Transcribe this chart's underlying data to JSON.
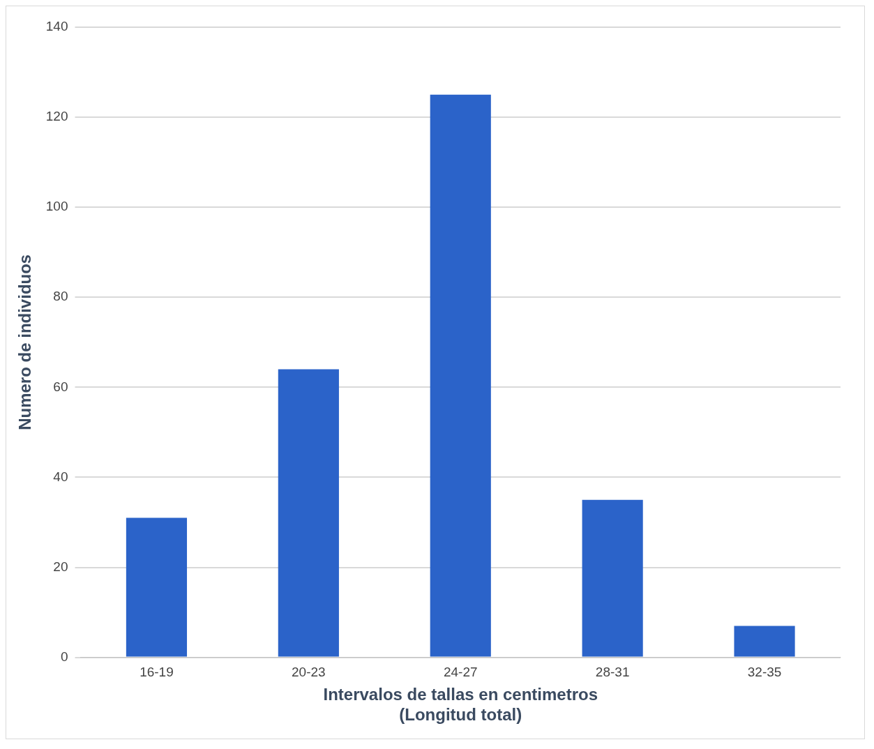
{
  "chart_data": {
    "type": "bar",
    "xlabel": "Intervalos de tallas en centimetros\n(Longitud total)",
    "ylabel": "Numero de individuos",
    "categories": [
      "16-19",
      "20-23",
      "24-27",
      "28-31",
      "32-35"
    ],
    "values": [
      31,
      64,
      125,
      35,
      7
    ],
    "color": "#2b63c9",
    "ylim": [
      0,
      140
    ],
    "yticks": [
      0,
      20,
      40,
      60,
      80,
      100,
      120,
      140
    ],
    "grid": "y"
  }
}
